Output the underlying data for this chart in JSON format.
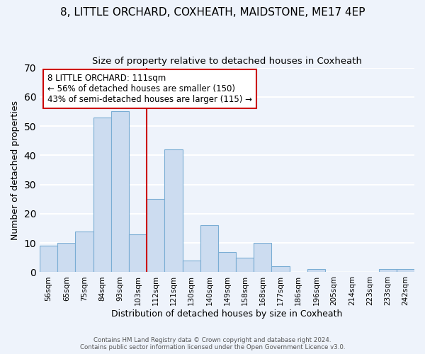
{
  "title": "8, LITTLE ORCHARD, COXHEATH, MAIDSTONE, ME17 4EP",
  "subtitle": "Size of property relative to detached houses in Coxheath",
  "xlabel": "Distribution of detached houses by size in Coxheath",
  "ylabel": "Number of detached properties",
  "bar_color": "#ccdcf0",
  "bar_edge_color": "#7aadd4",
  "background_color": "#eef3fb",
  "grid_color": "#ffffff",
  "redline_color": "#cc0000",
  "annotation_line1": "8 LITTLE ORCHARD: 111sqm",
  "annotation_line2": "← 56% of detached houses are smaller (150)",
  "annotation_line3": "43% of semi-detached houses are larger (115) →",
  "annotation_box_color": "#ffffff",
  "annotation_box_edge": "#cc0000",
  "categories": [
    "56sqm",
    "65sqm",
    "75sqm",
    "84sqm",
    "93sqm",
    "103sqm",
    "112sqm",
    "121sqm",
    "130sqm",
    "140sqm",
    "149sqm",
    "158sqm",
    "168sqm",
    "177sqm",
    "186sqm",
    "196sqm",
    "205sqm",
    "214sqm",
    "223sqm",
    "233sqm",
    "242sqm"
  ],
  "values": [
    9,
    10,
    14,
    53,
    55,
    13,
    25,
    42,
    4,
    16,
    7,
    5,
    10,
    2,
    0,
    1,
    0,
    0,
    0,
    1,
    1
  ],
  "redline_index": 6,
  "ylim": [
    0,
    70
  ],
  "yticks": [
    0,
    10,
    20,
    30,
    40,
    50,
    60,
    70
  ],
  "footer_line1": "Contains HM Land Registry data © Crown copyright and database right 2024.",
  "footer_line2": "Contains public sector information licensed under the Open Government Licence v3.0."
}
